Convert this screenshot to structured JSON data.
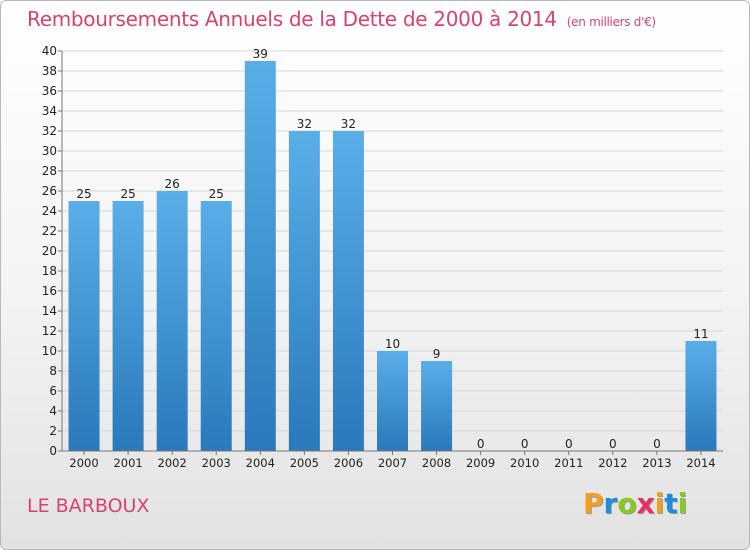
{
  "page": {
    "title": "Remboursements Annuels de la Dette de 2000 à 2014",
    "subtitle": "(en milliers d'€)",
    "commune": "LE BARBOUX",
    "logo": "Proxiti"
  },
  "colors": {
    "title": "#d9426f",
    "bar_top": "#5aaee8",
    "bar_bottom": "#2a79bb",
    "grid": "#d6d6d6",
    "axis": "#777777",
    "logo_letters": [
      "#f0a020",
      "#1e8ed8",
      "#88c820",
      "#e83060",
      "#f0a020",
      "#1e8ed8",
      "#88c820"
    ]
  },
  "chart_data": {
    "type": "bar",
    "categories": [
      "2000",
      "2001",
      "2002",
      "2003",
      "2004",
      "2005",
      "2006",
      "2007",
      "2008",
      "2009",
      "2010",
      "2011",
      "2012",
      "2013",
      "2014"
    ],
    "values": [
      25,
      25,
      26,
      25,
      39,
      32,
      32,
      10,
      9,
      0,
      0,
      0,
      0,
      0,
      11
    ],
    "title": "Remboursements Annuels de la Dette de 2000 à 2014",
    "ylim": [
      0,
      40
    ],
    "yticks": [
      0,
      2,
      4,
      6,
      8,
      10,
      12,
      14,
      16,
      18,
      20,
      22,
      24,
      26,
      28,
      30,
      32,
      34,
      36,
      38,
      40
    ],
    "grid": true,
    "data_labels": true
  }
}
